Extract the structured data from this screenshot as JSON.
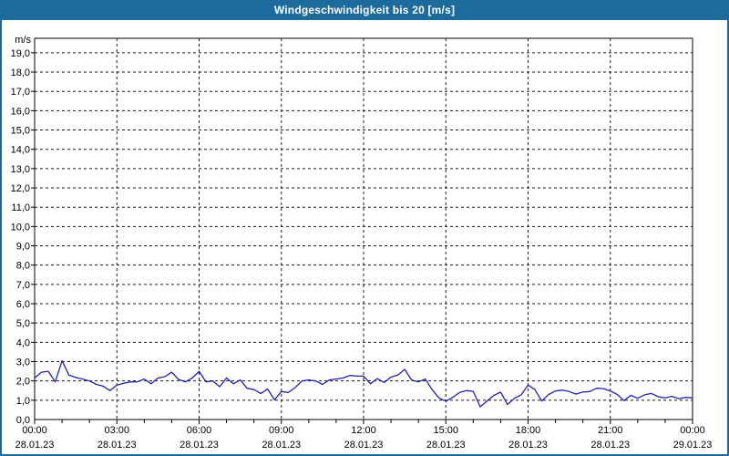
{
  "colors": {
    "frame": "#1d6a9c",
    "titlebar_bg": "#1d6a9c",
    "titlebar_text": "#ffffff",
    "plot_bg": "#ffffff",
    "plot_border": "#000000",
    "grid": "#1a1a1a",
    "tick": "#000000",
    "label_text": "#000000",
    "line": "#2222b2"
  },
  "chart_data": {
    "type": "line",
    "title": "Windgeschwindigkeit bis 20 [m/s]",
    "ylabel": "m/s",
    "ylim": [
      0,
      19.75
    ],
    "y_tick_step": 1,
    "y_tick_max": 19,
    "y_tick_decimal_separator": ",",
    "grid": "dashed",
    "legend_position": "none",
    "x_hours_span": 24,
    "minor_tick_hours": 1,
    "x_ticks": [
      {
        "hour": 0,
        "time": "00:00",
        "date": "28.01.23"
      },
      {
        "hour": 3,
        "time": "03:00",
        "date": "28.01.23"
      },
      {
        "hour": 6,
        "time": "06:00",
        "date": "28.01.23"
      },
      {
        "hour": 9,
        "time": "09:00",
        "date": "28.01.23"
      },
      {
        "hour": 12,
        "time": "12:00",
        "date": "28.01.23"
      },
      {
        "hour": 15,
        "time": "15:00",
        "date": "28.01.23"
      },
      {
        "hour": 18,
        "time": "18:00",
        "date": "28.01.23"
      },
      {
        "hour": 21,
        "time": "21:00",
        "date": "28.01.23"
      },
      {
        "hour": 24,
        "time": "00:00",
        "date": "29.01.23"
      }
    ],
    "series": [
      {
        "name": "Windgeschwindigkeit",
        "color": "#2222b2",
        "x_start_hour": 0,
        "x_step_hours": 0.25,
        "values": [
          2.15,
          2.45,
          2.5,
          1.95,
          3.05,
          2.3,
          2.18,
          2.1,
          2.0,
          1.82,
          1.73,
          1.5,
          1.78,
          1.88,
          1.95,
          1.95,
          2.1,
          1.85,
          2.15,
          2.22,
          2.45,
          2.08,
          1.95,
          2.15,
          2.5,
          1.95,
          2.0,
          1.7,
          2.15,
          1.85,
          2.05,
          1.62,
          1.55,
          1.35,
          1.58,
          1.02,
          1.45,
          1.4,
          1.65,
          2.0,
          2.05,
          2.0,
          1.82,
          2.05,
          2.1,
          2.15,
          2.28,
          2.25,
          2.25,
          1.85,
          2.12,
          1.92,
          2.2,
          2.3,
          2.6,
          2.05,
          1.95,
          2.1,
          1.55,
          1.12,
          0.95,
          1.15,
          1.4,
          1.5,
          1.46,
          0.66,
          0.95,
          1.25,
          1.42,
          0.78,
          1.1,
          1.28,
          1.78,
          1.55,
          0.96,
          1.3,
          1.48,
          1.52,
          1.45,
          1.32,
          1.42,
          1.45,
          1.62,
          1.6,
          1.48,
          1.3,
          0.98,
          1.25,
          1.1,
          1.28,
          1.35,
          1.18,
          1.12,
          1.2,
          1.08,
          1.15,
          1.12
        ]
      }
    ]
  }
}
